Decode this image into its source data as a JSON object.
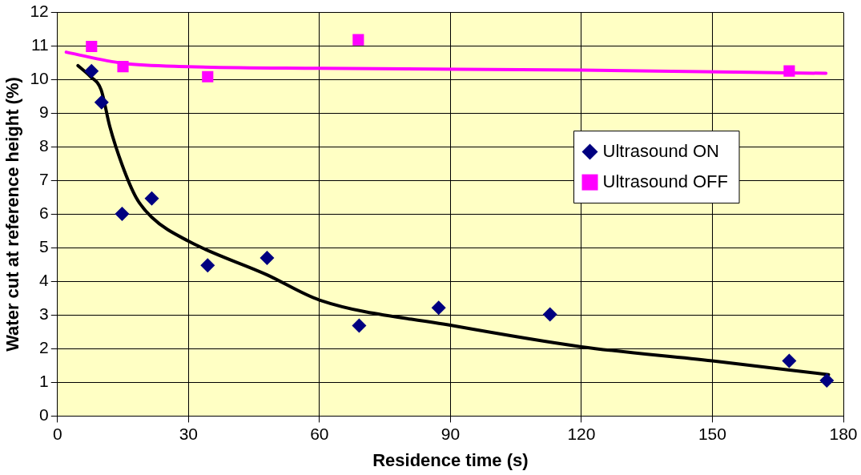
{
  "chart_data": {
    "type": "scatter",
    "xlabel": "Residence time (s)",
    "ylabel": "Water cut at reference height (%)",
    "xlim": [
      0,
      180
    ],
    "xticks": [
      0,
      30,
      60,
      90,
      120,
      150,
      180
    ],
    "ylim": [
      0,
      12
    ],
    "yticks": [
      0,
      1,
      2,
      3,
      4,
      5,
      6,
      7,
      8,
      9,
      10,
      11,
      12
    ],
    "grid": true,
    "legend": "right",
    "series": [
      {
        "name": "Ultrasound ON",
        "marker": "diamond",
        "color": "#000080",
        "x": [
          7.8,
          10.1,
          14.8,
          21.6,
          34.4,
          48.0,
          69.1,
          87.3,
          112.8,
          167.6,
          176.2
        ],
        "values": [
          10.26,
          9.33,
          6.01,
          6.47,
          4.48,
          4.7,
          2.69,
          3.22,
          3.02,
          1.64,
          1.06
        ]
      },
      {
        "name": "Ultrasound OFF",
        "marker": "square",
        "color": "#ff00ff",
        "x": [
          7.8,
          15.0,
          34.4,
          68.9,
          167.6
        ],
        "values": [
          10.99,
          10.39,
          10.09,
          11.19,
          10.26
        ]
      },
      {
        "type": "line",
        "marker": "none",
        "color": "#000000",
        "x": [
          4.7,
          7.5,
          10,
          12,
          14.8,
          18,
          21.6,
          30,
          48,
          60,
          90,
          120,
          150,
          176.6
        ],
        "values": [
          10.42,
          10.1,
          9.7,
          8.6,
          7.47,
          6.5,
          5.91,
          5.2,
          4.2,
          3.45,
          2.7,
          2.06,
          1.64,
          1.23
        ]
      },
      {
        "type": "line",
        "marker": "none",
        "color": "#ff00ff",
        "x": [
          2,
          15,
          30,
          60,
          120,
          176
        ],
        "values": [
          10.82,
          10.49,
          10.39,
          10.34,
          10.29,
          10.19
        ]
      }
    ]
  }
}
